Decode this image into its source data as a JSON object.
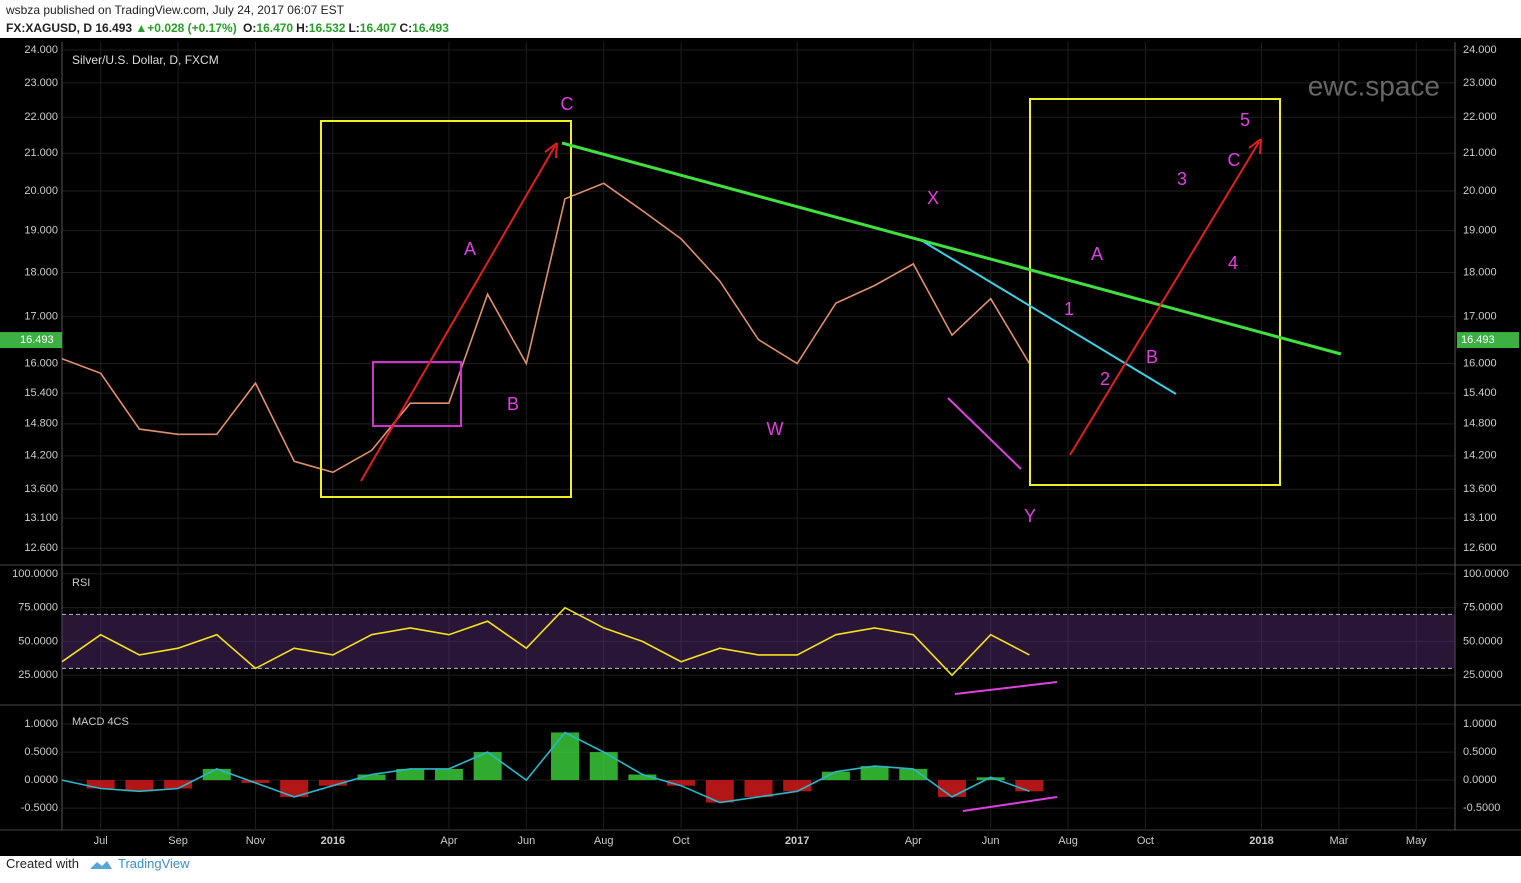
{
  "header": {
    "author_line": "wsbza published on TradingView.com, July 24, 2017 06:07 EST",
    "symbol": "FX:XAGUSD, D",
    "price": "16.493",
    "change": "+0.028 (+0.17%)",
    "ohlc": [
      {
        "label": "O:",
        "value": "16.470"
      },
      {
        "label": "H:",
        "value": "16.532"
      },
      {
        "label": "L:",
        "value": "16.407"
      },
      {
        "label": "C:",
        "value": "16.493"
      }
    ]
  },
  "footer": {
    "created": "Created with",
    "brand": "TradingView"
  },
  "chart_data": [
    {
      "type": "line",
      "title": "Silver/U.S. Dollar, D, FXCM",
      "watermark": "ewc.space",
      "color": "#e0906a",
      "x": [
        "2015-06",
        "2015-07",
        "2015-08",
        "2015-09",
        "2015-10",
        "2015-11",
        "2015-12",
        "2016-01",
        "2016-02",
        "2016-03",
        "2016-04",
        "2016-05",
        "2016-06",
        "2016-07",
        "2016-08",
        "2016-09",
        "2016-10",
        "2016-11",
        "2016-12",
        "2017-01",
        "2017-02",
        "2017-03",
        "2017-04",
        "2017-05",
        "2017-06",
        "2017-07"
      ],
      "values": [
        16.1,
        15.8,
        14.7,
        14.6,
        14.6,
        15.6,
        14.1,
        13.9,
        14.3,
        15.2,
        15.2,
        17.5,
        16.0,
        19.8,
        20.2,
        19.5,
        18.8,
        17.8,
        16.5,
        16.0,
        17.3,
        17.7,
        18.2,
        16.6,
        17.4,
        16.0
      ],
      "last_value": 16.493,
      "last_color": "#3cb043",
      "log_scale": true,
      "grid": true,
      "xlim": [
        "2015-06",
        "2018-06"
      ],
      "xticks": [
        {
          "value": "2015-07",
          "label": "Jul"
        },
        {
          "value": "2015-09",
          "label": "Sep"
        },
        {
          "value": "2015-11",
          "label": "Nov"
        },
        {
          "value": "2016-01",
          "label": "2016"
        },
        {
          "value": "2016-04",
          "label": "Apr"
        },
        {
          "value": "2016-06",
          "label": "Jun"
        },
        {
          "value": "2016-08",
          "label": "Aug"
        },
        {
          "value": "2016-10",
          "label": "Oct"
        },
        {
          "value": "2017-01",
          "label": "2017"
        },
        {
          "value": "2017-04",
          "label": "Apr"
        },
        {
          "value": "2017-06",
          "label": "Jun"
        },
        {
          "value": "2017-08",
          "label": "Aug"
        },
        {
          "value": "2017-10",
          "label": "Oct"
        },
        {
          "value": "2018-01",
          "label": "2018"
        },
        {
          "value": "2018-03",
          "label": "Mar"
        },
        {
          "value": "2018-05",
          "label": "May"
        }
      ],
      "ylim": [
        12.33,
        24.25
      ],
      "yticks": [
        {
          "value": 24,
          "label": "24.000"
        },
        {
          "value": 23,
          "label": "23.000"
        },
        {
          "value": 22,
          "label": "22.000"
        },
        {
          "value": 21,
          "label": "21.000"
        },
        {
          "value": 20,
          "label": "20.000"
        },
        {
          "value": 19,
          "label": "19.000"
        },
        {
          "value": 18,
          "label": "18.000"
        },
        {
          "value": 17,
          "label": "17.000"
        },
        {
          "value": 16,
          "label": "16.000"
        },
        {
          "value": 15.4,
          "label": "15.400"
        },
        {
          "value": 14.8,
          "label": "14.800"
        },
        {
          "value": 14.2,
          "label": "14.200"
        },
        {
          "value": 13.6,
          "label": "13.600"
        },
        {
          "value": 13.1,
          "label": "13.100"
        },
        {
          "value": 12.6,
          "label": "12.600"
        }
      ],
      "annotations": [
        "C",
        "A",
        "B",
        "W",
        "X",
        "Y",
        "A",
        "B",
        "1",
        "2",
        "3",
        "4",
        "5",
        "C"
      ]
    },
    {
      "type": "line",
      "title": "RSI",
      "color": "#f5e11b",
      "x": [
        "2015-06",
        "2015-07",
        "2015-08",
        "2015-09",
        "2015-10",
        "2015-11",
        "2015-12",
        "2016-01",
        "2016-02",
        "2016-03",
        "2016-04",
        "2016-05",
        "2016-06",
        "2016-07",
        "2016-08",
        "2016-09",
        "2016-10",
        "2016-11",
        "2016-12",
        "2017-01",
        "2017-02",
        "2017-03",
        "2017-04",
        "2017-05",
        "2017-06",
        "2017-07"
      ],
      "values": [
        35,
        55,
        40,
        45,
        55,
        30,
        45,
        40,
        55,
        60,
        55,
        65,
        45,
        75,
        60,
        50,
        35,
        45,
        40,
        40,
        55,
        60,
        55,
        25,
        55,
        40
      ],
      "band": [
        30,
        70
      ],
      "band_color": "#5a2e78",
      "ylim": [
        2.9,
        106.6
      ],
      "yticks": [
        {
          "value": 100,
          "label": "100.0000"
        },
        {
          "value": 75,
          "label": "75.0000"
        },
        {
          "value": 50,
          "label": "50.0000"
        },
        {
          "value": 25,
          "label": "25.0000"
        }
      ]
    },
    {
      "type": "histogram-line",
      "title": "MACD 4CS",
      "color": "#2ab7c9",
      "up_color": "#3cd63c",
      "down_color": "#e01b1b",
      "x": [
        "2015-06",
        "2015-07",
        "2015-08",
        "2015-09",
        "2015-10",
        "2015-11",
        "2015-12",
        "2016-01",
        "2016-02",
        "2016-03",
        "2016-04",
        "2016-05",
        "2016-06",
        "2016-07",
        "2016-08",
        "2016-09",
        "2016-10",
        "2016-11",
        "2016-12",
        "2017-01",
        "2017-02",
        "2017-03",
        "2017-04",
        "2017-05",
        "2017-06",
        "2017-07"
      ],
      "values": [
        0,
        -0.15,
        -0.2,
        -0.15,
        0.2,
        -0.05,
        -0.3,
        -0.1,
        0.1,
        0.2,
        0.2,
        0.5,
        0,
        0.85,
        0.5,
        0.1,
        -0.1,
        -0.4,
        -0.3,
        -0.2,
        0.15,
        0.25,
        0.2,
        -0.3,
        0.05,
        -0.2
      ],
      "ylim": [
        -0.89,
        1.34
      ],
      "yticks": [
        {
          "value": 1,
          "label": "1.0000"
        },
        {
          "value": 0.5,
          "label": "0.5000"
        },
        {
          "value": 0,
          "label": "0.0000"
        },
        {
          "value": -0.5,
          "label": "-0.5000"
        }
      ]
    }
  ]
}
